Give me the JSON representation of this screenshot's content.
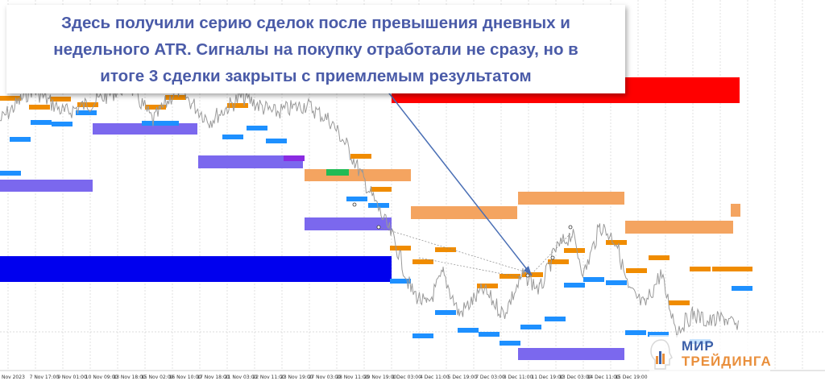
{
  "annotation": {
    "text": "Здесь получили серию сделок после превышения дневных и\nнедельного ATR. Сигналы на покупку отработали не сразу, но в\nитоге 3 сделки закрыты с приемлемым результатом"
  },
  "logo": {
    "line1": "МИР",
    "line2": "ТРЕЙДИНГА",
    "icon": "head-chart-icon"
  },
  "colors": {
    "price_line": "#9a9a9a",
    "support_zone": "#0000ee",
    "resistance_zone": "#ff0000",
    "orange_level": "#f08c00",
    "orange_zone": "#f4a460",
    "blue_level": "#1e90ff",
    "purple_zone": "#7b68ee",
    "green_level": "#22bb55",
    "arrow": "#4a6fb5"
  },
  "chart_data": {
    "type": "line",
    "title": "",
    "x_tick_labels": [
      "Nov 2023",
      "7 Nov 17:00",
      "9 Nov 01:00",
      "10 Nov 09:00",
      "13 Nov 18:00",
      "15 Nov 02:00",
      "16 Nov 10:00",
      "17 Nov 18:00",
      "21 Nov 03:00",
      "22 Nov 11:00",
      "23 Nov 19:00",
      "27 Nov 03:00",
      "28 Nov 11:00",
      "29 Nov 19:00",
      "1 Dec 03:00",
      "4 Dec 11:00",
      "5 Dec 19:00",
      "7 Dec 03:00",
      "8 Dec 11:00",
      "11 Dec 19:00",
      "13 Dec 03:00",
      "14 Dec 11:00",
      "15 Dec 19:00"
    ]
  }
}
